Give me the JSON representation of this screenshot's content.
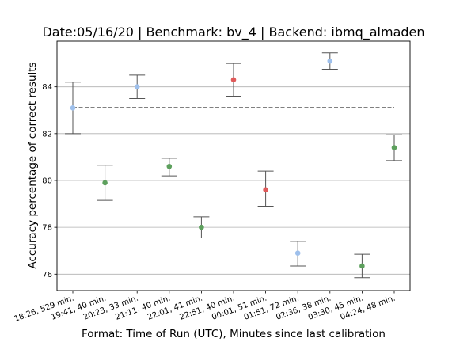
{
  "chart_data": {
    "type": "scatter",
    "title": "Date:05/16/20 | Benchmark: bv_4 | Backend: ibmq_almaden",
    "xlabel": "Format: Time of Run (UTC), Minutes since last calibration",
    "ylabel": "Accuracy percentage of correct results",
    "categories": [
      "18:26, 529 min.",
      "19:41, 40 min.",
      "20:23, 33 min.",
      "21:11, 40 min.",
      "22:01, 41 min.",
      "22:51, 40 min.",
      "00:01, 51 min.",
      "01:51, 72 min.",
      "02:36, 38 min.",
      "03:30, 45 min.",
      "04:24, 48 min."
    ],
    "points": [
      {
        "y": 83.1,
        "err_low": 82.0,
        "err_high": 84.2,
        "color": "#9ec0ec"
      },
      {
        "y": 79.9,
        "err_low": 79.15,
        "err_high": 80.65,
        "color": "#5da05d"
      },
      {
        "y": 84.0,
        "err_low": 83.5,
        "err_high": 84.5,
        "color": "#9ec0ec"
      },
      {
        "y": 80.6,
        "err_low": 80.2,
        "err_high": 80.95,
        "color": "#5da05d"
      },
      {
        "y": 78.0,
        "err_low": 77.55,
        "err_high": 78.45,
        "color": "#5da05d"
      },
      {
        "y": 84.3,
        "err_low": 83.6,
        "err_high": 85.0,
        "color": "#e05a5a"
      },
      {
        "y": 79.6,
        "err_low": 78.9,
        "err_high": 80.4,
        "color": "#e05a5a"
      },
      {
        "y": 76.9,
        "err_low": 76.35,
        "err_high": 77.4,
        "color": "#9ec0ec"
      },
      {
        "y": 85.1,
        "err_low": 84.75,
        "err_high": 85.45,
        "color": "#9ec0ec"
      },
      {
        "y": 76.35,
        "err_low": 75.85,
        "err_high": 76.85,
        "color": "#5da05d"
      },
      {
        "y": 81.4,
        "err_low": 80.85,
        "err_high": 81.95,
        "color": "#5da05d"
      }
    ],
    "reference_line": {
      "y": 83.1,
      "style": "dashed",
      "color": "#000000"
    },
    "yticks": [
      76,
      78,
      80,
      82,
      84
    ],
    "ylim": [
      75.3,
      85.95
    ],
    "grid": "horizontal",
    "errorbar_color": "#555555"
  }
}
